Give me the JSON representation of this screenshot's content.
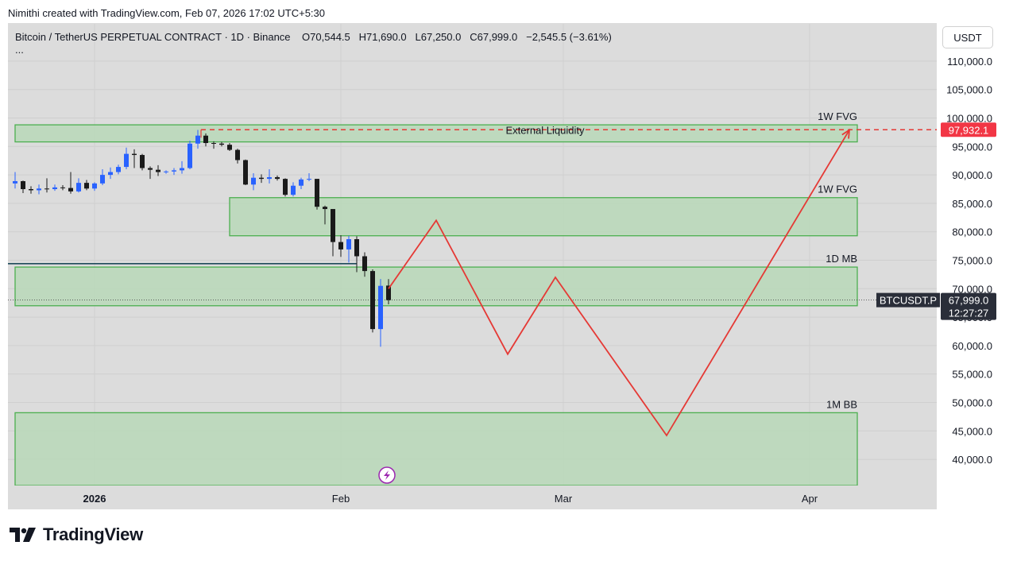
{
  "header": {
    "attribution": "Nimithi created with TradingView.com, Feb 07, 2026 17:02 UTC+5:30"
  },
  "symbol_info": {
    "name": "Bitcoin / TetherUS PERPETUAL CONTRACT · 1D · Binance",
    "open_label": "O",
    "open": "70,544.5",
    "high_label": "H",
    "high": "71,690.0",
    "low_label": "L",
    "low": "67,250.0",
    "close_label": "C",
    "close": "67,999.0",
    "change": "−2,545.5 (−3.61%)",
    "more": "..."
  },
  "currency_button": "USDT",
  "price_labels": {
    "external_liquidity_value": "97,932.1",
    "last_price_symbol": "BTCUSDT.P",
    "last_price": "67,999.0",
    "countdown": "12:27:27"
  },
  "footer": {
    "brand": "TradingView"
  },
  "colors": {
    "bg": "#dcdcdc",
    "zone_fill": "#b8d8b8",
    "zone_stroke": "#4caf50",
    "up": "#2962ff",
    "down": "#1a1a1a",
    "projection": "#e53935",
    "marker": "#9c27b0"
  },
  "chart_data": {
    "type": "candlestick",
    "title": "Bitcoin / TetherUS PERPETUAL CONTRACT · 1D · Binance",
    "ylim": [
      35000,
      115000
    ],
    "y_ticks": [
      40000,
      45000,
      50000,
      55000,
      60000,
      65000,
      70000,
      75000,
      80000,
      85000,
      90000,
      95000,
      100000,
      105000,
      110000
    ],
    "y_tick_labels": [
      "40,000.0",
      "45,000.0",
      "50,000.0",
      "55,000.0",
      "60,000.0",
      "65,000.0",
      "70,000.0",
      "75,000.0",
      "80,000.0",
      "85,000.0",
      "90,000.0",
      "95,000.0",
      "100,000.0",
      "105,000.0",
      "110,000.0"
    ],
    "x_ticks": [
      {
        "label": "2026",
        "date": "2026-01-01",
        "bold": true
      },
      {
        "label": "Feb",
        "date": "2026-02-01",
        "bold": false
      },
      {
        "label": "Mar",
        "date": "2026-03-01",
        "bold": false
      },
      {
        "label": "Apr",
        "date": "2026-04-01",
        "bold": false
      }
    ],
    "xlim": [
      "2025-12-22",
      "2026-04-11"
    ],
    "grid": true,
    "candles": [
      {
        "date": "2025-12-22",
        "o": 88500,
        "h": 90500,
        "l": 87600,
        "c": 88900
      },
      {
        "date": "2025-12-23",
        "o": 88900,
        "h": 89000,
        "l": 86800,
        "c": 87500
      },
      {
        "date": "2025-12-24",
        "o": 87500,
        "h": 88000,
        "l": 86700,
        "c": 87300
      },
      {
        "date": "2025-12-25",
        "o": 87300,
        "h": 88300,
        "l": 86600,
        "c": 87600
      },
      {
        "date": "2025-12-26",
        "o": 87600,
        "h": 89400,
        "l": 86900,
        "c": 87500
      },
      {
        "date": "2025-12-27",
        "o": 87500,
        "h": 88300,
        "l": 87200,
        "c": 87800
      },
      {
        "date": "2025-12-28",
        "o": 87800,
        "h": 88200,
        "l": 87300,
        "c": 87700
      },
      {
        "date": "2025-12-29",
        "o": 87700,
        "h": 90500,
        "l": 86700,
        "c": 87100
      },
      {
        "date": "2025-12-30",
        "o": 87100,
        "h": 89400,
        "l": 86900,
        "c": 88600
      },
      {
        "date": "2025-12-31",
        "o": 88600,
        "h": 89100,
        "l": 87300,
        "c": 87600
      },
      {
        "date": "2026-01-01",
        "o": 87600,
        "h": 88700,
        "l": 87200,
        "c": 88500
      },
      {
        "date": "2026-01-02",
        "o": 88500,
        "h": 91000,
        "l": 88200,
        "c": 90000
      },
      {
        "date": "2026-01-03",
        "o": 90000,
        "h": 91300,
        "l": 89300,
        "c": 90500
      },
      {
        "date": "2026-01-04",
        "o": 90500,
        "h": 91800,
        "l": 90100,
        "c": 91400
      },
      {
        "date": "2026-01-05",
        "o": 91400,
        "h": 94800,
        "l": 91000,
        "c": 93700
      },
      {
        "date": "2026-01-06",
        "o": 93700,
        "h": 94500,
        "l": 91200,
        "c": 93500
      },
      {
        "date": "2026-01-07",
        "o": 93500,
        "h": 93700,
        "l": 90800,
        "c": 91200
      },
      {
        "date": "2026-01-08",
        "o": 91200,
        "h": 91500,
        "l": 89300,
        "c": 90900
      },
      {
        "date": "2026-01-09",
        "o": 90900,
        "h": 91700,
        "l": 89800,
        "c": 90500
      },
      {
        "date": "2026-01-10",
        "o": 90500,
        "h": 90800,
        "l": 90200,
        "c": 90600
      },
      {
        "date": "2026-01-11",
        "o": 90600,
        "h": 91200,
        "l": 90000,
        "c": 90800
      },
      {
        "date": "2026-01-12",
        "o": 90800,
        "h": 92400,
        "l": 90200,
        "c": 91200
      },
      {
        "date": "2026-01-13",
        "o": 91200,
        "h": 96000,
        "l": 91000,
        "c": 95500
      },
      {
        "date": "2026-01-14",
        "o": 95500,
        "h": 97900,
        "l": 94600,
        "c": 96900
      },
      {
        "date": "2026-01-15",
        "o": 96900,
        "h": 97300,
        "l": 95000,
        "c": 95600
      },
      {
        "date": "2026-01-16",
        "o": 95600,
        "h": 95900,
        "l": 94600,
        "c": 95500
      },
      {
        "date": "2026-01-17",
        "o": 95500,
        "h": 95800,
        "l": 95000,
        "c": 95300
      },
      {
        "date": "2026-01-18",
        "o": 95300,
        "h": 95600,
        "l": 94200,
        "c": 94400
      },
      {
        "date": "2026-01-19",
        "o": 94400,
        "h": 94600,
        "l": 92000,
        "c": 92600
      },
      {
        "date": "2026-01-20",
        "o": 92600,
        "h": 92700,
        "l": 88200,
        "c": 88300
      },
      {
        "date": "2026-01-21",
        "o": 88300,
        "h": 90300,
        "l": 87300,
        "c": 89500
      },
      {
        "date": "2026-01-22",
        "o": 89500,
        "h": 90100,
        "l": 88600,
        "c": 89300
      },
      {
        "date": "2026-01-23",
        "o": 89300,
        "h": 91000,
        "l": 88500,
        "c": 89600
      },
      {
        "date": "2026-01-24",
        "o": 89600,
        "h": 89900,
        "l": 89000,
        "c": 89300
      },
      {
        "date": "2026-01-25",
        "o": 89300,
        "h": 89400,
        "l": 86200,
        "c": 86500
      },
      {
        "date": "2026-01-26",
        "o": 86500,
        "h": 88700,
        "l": 86200,
        "c": 88100
      },
      {
        "date": "2026-01-27",
        "o": 88100,
        "h": 89500,
        "l": 87500,
        "c": 89200
      },
      {
        "date": "2026-01-28",
        "o": 89200,
        "h": 90300,
        "l": 88900,
        "c": 89300
      },
      {
        "date": "2026-01-29",
        "o": 89300,
        "h": 89300,
        "l": 83900,
        "c": 84400
      },
      {
        "date": "2026-01-30",
        "o": 84400,
        "h": 84600,
        "l": 81300,
        "c": 84000
      },
      {
        "date": "2026-01-31",
        "o": 84000,
        "h": 84000,
        "l": 75700,
        "c": 78200
      },
      {
        "date": "2026-02-01",
        "o": 78200,
        "h": 79400,
        "l": 75600,
        "c": 76900
      },
      {
        "date": "2026-02-02",
        "o": 76900,
        "h": 79300,
        "l": 74600,
        "c": 78700
      },
      {
        "date": "2026-02-03",
        "o": 78700,
        "h": 79200,
        "l": 72900,
        "c": 75700
      },
      {
        "date": "2026-02-04",
        "o": 75700,
        "h": 76400,
        "l": 72100,
        "c": 73100
      },
      {
        "date": "2026-02-05",
        "o": 73100,
        "h": 73400,
        "l": 62300,
        "c": 62900
      },
      {
        "date": "2026-02-06",
        "o": 62900,
        "h": 71700,
        "l": 59800,
        "c": 70500
      },
      {
        "date": "2026-02-07",
        "o": 70544.5,
        "h": 71690,
        "l": 67250,
        "c": 67999
      }
    ],
    "zones": [
      {
        "label": "1W FVG",
        "start": "2025-12-22",
        "end": "2026-04-07",
        "low": 95800,
        "high": 98800
      },
      {
        "label": "1W FVG",
        "start": "2026-01-18",
        "end": "2026-04-07",
        "low": 79300,
        "high": 86000
      },
      {
        "label": "1D MB",
        "start": "2025-12-22",
        "end": "2026-04-07",
        "low": 67000,
        "high": 73800
      },
      {
        "label": "1M BB",
        "start": "2025-12-22",
        "end": "2026-04-07",
        "low": 35000,
        "high": 48200
      }
    ],
    "external_liquidity": {
      "label": "External Liquidity",
      "price": 97932.1,
      "start": "2026-01-14"
    },
    "support_line": {
      "price": 74400,
      "start": "2025-12-22",
      "end": "2026-02-02"
    },
    "projection": [
      {
        "date": "2026-02-07",
        "price": 70000
      },
      {
        "date": "2026-02-13",
        "price": 82000
      },
      {
        "date": "2026-02-22",
        "price": 58500
      },
      {
        "date": "2026-02-28",
        "price": 72000
      },
      {
        "date": "2026-03-14",
        "price": 44200
      },
      {
        "date": "2026-04-06",
        "price": 97900
      }
    ],
    "last_price": 67999.0,
    "event_marker_date": "2026-02-06"
  }
}
